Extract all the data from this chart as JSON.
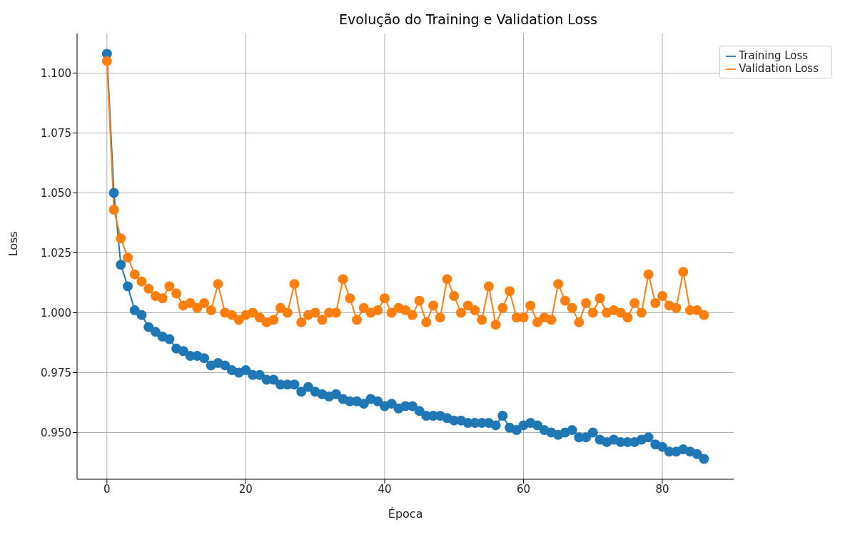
{
  "chart_data": {
    "type": "line",
    "title": "Evolução do Training e Validation Loss",
    "xlabel": "Época",
    "ylabel": "Loss",
    "x": [
      0,
      1,
      2,
      3,
      4,
      5,
      6,
      7,
      8,
      9,
      10,
      11,
      12,
      13,
      14,
      15,
      16,
      17,
      18,
      19,
      20,
      21,
      22,
      23,
      24,
      25,
      26,
      27,
      28,
      29,
      30,
      31,
      32,
      33,
      34,
      35,
      36,
      37,
      38,
      39,
      40,
      41,
      42,
      43,
      44,
      45,
      46,
      47,
      48,
      49,
      50,
      51,
      52,
      53,
      54,
      55,
      56,
      57,
      58,
      59,
      60,
      61,
      62,
      63,
      64,
      65,
      66,
      67,
      68,
      69,
      70,
      71,
      72,
      73,
      74,
      75,
      76,
      77,
      78,
      79,
      80,
      81,
      82,
      83,
      84,
      85,
      86
    ],
    "series": [
      {
        "name": "Training Loss",
        "color": "#1f77b4",
        "values": [
          1.108,
          1.05,
          1.02,
          1.011,
          1.001,
          0.999,
          0.994,
          0.992,
          0.99,
          0.989,
          0.985,
          0.984,
          0.982,
          0.982,
          0.981,
          0.978,
          0.979,
          0.978,
          0.976,
          0.975,
          0.976,
          0.974,
          0.974,
          0.972,
          0.972,
          0.97,
          0.97,
          0.97,
          0.967,
          0.969,
          0.967,
          0.966,
          0.965,
          0.966,
          0.964,
          0.963,
          0.963,
          0.962,
          0.964,
          0.963,
          0.961,
          0.962,
          0.96,
          0.961,
          0.961,
          0.959,
          0.957,
          0.957,
          0.957,
          0.956,
          0.955,
          0.955,
          0.954,
          0.954,
          0.954,
          0.954,
          0.953,
          0.957,
          0.952,
          0.951,
          0.953,
          0.954,
          0.953,
          0.951,
          0.95,
          0.949,
          0.95,
          0.951,
          0.948,
          0.948,
          0.95,
          0.947,
          0.946,
          0.947,
          0.946,
          0.946,
          0.946,
          0.947,
          0.948,
          0.945,
          0.944,
          0.942,
          0.942,
          0.943,
          0.942,
          0.941,
          0.939
        ]
      },
      {
        "name": "Validation Loss",
        "color": "#ff7f0e",
        "values": [
          1.105,
          1.043,
          1.031,
          1.023,
          1.016,
          1.013,
          1.01,
          1.007,
          1.006,
          1.011,
          1.008,
          1.003,
          1.004,
          1.002,
          1.004,
          1.001,
          1.012,
          1.0,
          0.999,
          0.997,
          0.999,
          1.0,
          0.998,
          0.996,
          0.997,
          1.002,
          1.0,
          1.012,
          0.996,
          0.999,
          1.0,
          0.997,
          1.0,
          1.0,
          1.014,
          1.006,
          0.997,
          1.002,
          1.0,
          1.001,
          1.006,
          1.0,
          1.002,
          1.001,
          0.999,
          1.005,
          0.996,
          1.003,
          0.998,
          1.014,
          1.007,
          1.0,
          1.003,
          1.001,
          0.997,
          1.011,
          0.995,
          1.002,
          1.009,
          0.998,
          0.998,
          1.003,
          0.996,
          0.998,
          0.997,
          1.012,
          1.005,
          1.002,
          0.996,
          1.004,
          1.0,
          1.006,
          1.0,
          1.001,
          1.0,
          0.998,
          1.004,
          1.0,
          1.016,
          1.004,
          1.007,
          1.003,
          1.002,
          1.017,
          1.001,
          1.001,
          0.999
        ]
      }
    ],
    "xlim": [
      -4.3,
      90.3
    ],
    "xticks": [
      0,
      20,
      40,
      60,
      80
    ],
    "ylim": [
      0.9305,
      1.1165
    ],
    "yticks": [
      {
        "value": 0.95,
        "label": "0.950"
      },
      {
        "value": 0.975,
        "label": "0.975"
      },
      {
        "value": 1.0,
        "label": "1.000"
      },
      {
        "value": 1.025,
        "label": "1.025"
      },
      {
        "value": 1.05,
        "label": "1.050"
      },
      {
        "value": 1.075,
        "label": "1.075"
      },
      {
        "value": 1.1,
        "label": "1.100"
      }
    ],
    "grid": true,
    "legend": "top right",
    "marker": "circle",
    "line_style": "solid"
  }
}
